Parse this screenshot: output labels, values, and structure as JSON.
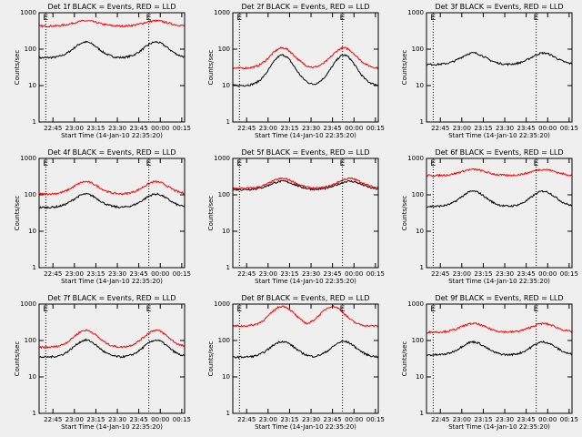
{
  "colors": {
    "background": "#efefef",
    "events": "#000000",
    "lld": "#ff0000"
  },
  "chart_data": [
    {
      "type": "line",
      "title": "Det 1f BLACK = Events, RED = LLD",
      "ylabel": "Counts/sec",
      "xlabel": "Start Time (14-Jan-10 22:35:20)",
      "x_ticks": [
        "22:45",
        "23:00",
        "23:15",
        "23:30",
        "23:45",
        "00:00",
        "00:15"
      ],
      "y_ticks": [
        "1",
        "10",
        "100",
        "1000"
      ],
      "ylim": [
        1,
        1000
      ],
      "yscale": "log",
      "markers": [
        {
          "label": "E",
          "time": "22:40"
        },
        {
          "label": "E",
          "time": "23:52"
        }
      ],
      "series": [
        {
          "color": "black",
          "min": 58,
          "max": 175,
          "peaks": [
            "23:08",
            "23:57"
          ]
        },
        {
          "color": "red",
          "min": 430,
          "max": 620,
          "peaks": [
            "23:08",
            "23:57"
          ]
        }
      ]
    },
    {
      "type": "line",
      "title": "Det 2f BLACK = Events, RED = LLD",
      "ylabel": "Counts/sec",
      "xlabel": "Start Time (14-Jan-10 22:35:20)",
      "x_ticks": [
        "22:45",
        "23:00",
        "23:15",
        "23:30",
        "23:45",
        "00:00",
        "00:15"
      ],
      "y_ticks": [
        "1",
        "10",
        "100",
        "1000"
      ],
      "ylim": [
        1,
        1000
      ],
      "yscale": "log",
      "markers": [
        {
          "label": "E",
          "time": "22:40"
        },
        {
          "label": "E",
          "time": "23:52"
        }
      ],
      "series": [
        {
          "color": "black",
          "min": 10,
          "max": 85,
          "peaks": [
            "23:10",
            "23:53"
          ]
        },
        {
          "color": "red",
          "min": 30,
          "max": 125,
          "peaks": [
            "23:10",
            "23:53"
          ]
        }
      ]
    },
    {
      "type": "line",
      "title": "Det 3f BLACK = Events, RED = LLD",
      "ylabel": "Counts/sec",
      "xlabel": "Start Time (14-Jan-10 22:35:20)",
      "x_ticks": [
        "22:45",
        "23:00",
        "23:15",
        "23:30",
        "23:45",
        "00:00",
        "00:15"
      ],
      "y_ticks": [
        "1",
        "10",
        "100",
        "1000"
      ],
      "ylim": [
        1,
        1000
      ],
      "yscale": "log",
      "markers": [
        {
          "label": "E",
          "time": "22:40"
        },
        {
          "label": "E",
          "time": "23:52"
        }
      ],
      "series": [
        {
          "color": "black",
          "min": 38,
          "max": 85,
          "peaks": [
            "23:08",
            "23:57"
          ]
        }
      ]
    },
    {
      "type": "line",
      "title": "Det 4f BLACK = Events, RED = LLD",
      "ylabel": "Counts/sec",
      "xlabel": "Start Time (14-Jan-10 22:35:20)",
      "x_ticks": [
        "22:45",
        "23:00",
        "23:15",
        "23:30",
        "23:45",
        "00:00",
        "00:15"
      ],
      "y_ticks": [
        "1",
        "10",
        "100",
        "1000"
      ],
      "ylim": [
        1,
        1000
      ],
      "yscale": "log",
      "markers": [
        {
          "label": "E",
          "time": "22:40"
        },
        {
          "label": "E",
          "time": "23:52"
        }
      ],
      "series": [
        {
          "color": "black",
          "min": 45,
          "max": 115,
          "peaks": [
            "23:08",
            "23:57"
          ]
        },
        {
          "color": "red",
          "min": 105,
          "max": 250,
          "peaks": [
            "23:08",
            "23:57"
          ]
        }
      ]
    },
    {
      "type": "line",
      "title": "Det 5f BLACK = Events, RED = LLD",
      "ylabel": "Counts/sec",
      "xlabel": "Start Time (14-Jan-10 22:35:20)",
      "x_ticks": [
        "22:45",
        "23:00",
        "23:15",
        "23:30",
        "23:45",
        "00:00",
        "00:15"
      ],
      "y_ticks": [
        "1",
        "10",
        "100",
        "1000"
      ],
      "ylim": [
        1,
        1000
      ],
      "yscale": "log",
      "markers": [
        {
          "label": "E",
          "time": "22:40"
        },
        {
          "label": "E",
          "time": "23:52"
        }
      ],
      "series": [
        {
          "color": "black",
          "min": 140,
          "max": 250,
          "peaks": [
            "23:10",
            "23:57"
          ]
        },
        {
          "color": "red",
          "min": 150,
          "max": 300,
          "peaks": [
            "23:10",
            "23:57"
          ]
        }
      ]
    },
    {
      "type": "line",
      "title": "Det 6f BLACK = Events, RED = LLD",
      "ylabel": "Counts/sec",
      "xlabel": "Start Time (14-Jan-10 22:35:20)",
      "x_ticks": [
        "22:45",
        "23:00",
        "23:15",
        "23:30",
        "23:45",
        "00:00",
        "00:15"
      ],
      "y_ticks": [
        "1",
        "10",
        "100",
        "1000"
      ],
      "ylim": [
        1,
        1000
      ],
      "yscale": "log",
      "markers": [
        {
          "label": "E",
          "time": "22:40"
        },
        {
          "label": "E",
          "time": "23:52"
        }
      ],
      "series": [
        {
          "color": "black",
          "min": 48,
          "max": 140,
          "peaks": [
            "23:08",
            "23:57"
          ]
        },
        {
          "color": "red",
          "min": 340,
          "max": 520,
          "peaks": [
            "23:08",
            "23:57"
          ]
        }
      ]
    },
    {
      "type": "line",
      "title": "Det 7f BLACK = Events, RED = LLD",
      "ylabel": "Counts/sec",
      "xlabel": "Start Time (14-Jan-10 22:35:20)",
      "x_ticks": [
        "22:45",
        "23:00",
        "23:15",
        "23:30",
        "23:45",
        "00:00",
        "00:15"
      ],
      "y_ticks": [
        "1",
        "10",
        "100",
        "1000"
      ],
      "ylim": [
        1,
        1000
      ],
      "yscale": "log",
      "markers": [
        {
          "label": "E",
          "time": "22:40"
        },
        {
          "label": "E",
          "time": "23:52"
        }
      ],
      "series": [
        {
          "color": "black",
          "min": 35,
          "max": 115,
          "peaks": [
            "23:08",
            "23:57"
          ]
        },
        {
          "color": "red",
          "min": 65,
          "max": 215,
          "peaks": [
            "23:08",
            "23:57"
          ]
        }
      ]
    },
    {
      "type": "line",
      "title": "Det 8f BLACK = Events, RED = LLD",
      "ylabel": "Counts/sec",
      "xlabel": "Start Time (14-Jan-10 22:35:20)",
      "x_ticks": [
        "22:45",
        "23:00",
        "23:15",
        "23:30",
        "23:45",
        "00:00",
        "00:15"
      ],
      "y_ticks": [
        "1",
        "10",
        "100",
        "1000"
      ],
      "ylim": [
        1,
        1000
      ],
      "yscale": "log",
      "markers": [
        {
          "label": "E",
          "time": "22:40"
        },
        {
          "label": "E",
          "time": "23:52"
        }
      ],
      "series": [
        {
          "color": "black",
          "min": 35,
          "max": 105,
          "peaks": [
            "23:10",
            "23:53"
          ]
        },
        {
          "color": "red",
          "min": 250,
          "max": 1000,
          "peaks": [
            "23:10",
            "23:45"
          ]
        }
      ]
    },
    {
      "type": "line",
      "title": "Det 9f BLACK = Events, RED = LLD",
      "ylabel": "Counts/sec",
      "xlabel": "Start Time (14-Jan-10 22:35:20)",
      "x_ticks": [
        "22:45",
        "23:00",
        "23:15",
        "23:30",
        "23:45",
        "00:00",
        "00:15"
      ],
      "y_ticks": [
        "1",
        "10",
        "100",
        "1000"
      ],
      "ylim": [
        1,
        1000
      ],
      "yscale": "log",
      "markers": [
        {
          "label": "E",
          "time": "22:40"
        },
        {
          "label": "E",
          "time": "23:52"
        }
      ],
      "series": [
        {
          "color": "black",
          "min": 40,
          "max": 100,
          "peaks": [
            "23:08",
            "23:57"
          ]
        },
        {
          "color": "red",
          "min": 170,
          "max": 310,
          "peaks": [
            "23:08",
            "23:57"
          ]
        }
      ]
    }
  ]
}
